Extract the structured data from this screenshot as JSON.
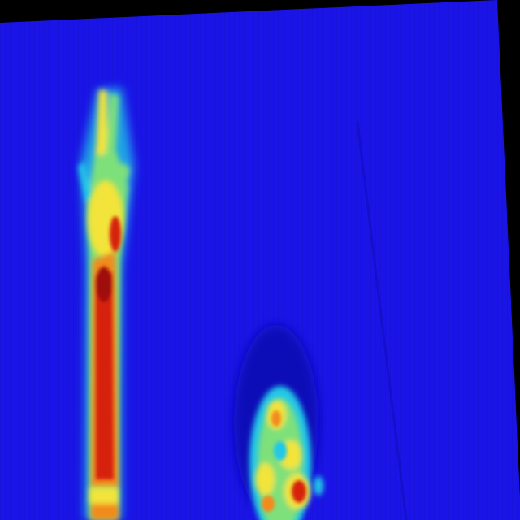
{
  "image": {
    "kind": "thermal-colormap",
    "colors": {
      "background_dark": "#000000",
      "field_blue": "#1a14e6",
      "field_blue_dark": "#0d0ab8",
      "cool_cyan": "#21c8e8",
      "mid_green": "#7ee07a",
      "warm_yellow": "#f2e43a",
      "warm_orange": "#f28a1a",
      "hot_red": "#d6200f",
      "hot_darkred": "#a0100a"
    },
    "subjects": [
      "raised-arm-with-hand",
      "head-top"
    ]
  }
}
